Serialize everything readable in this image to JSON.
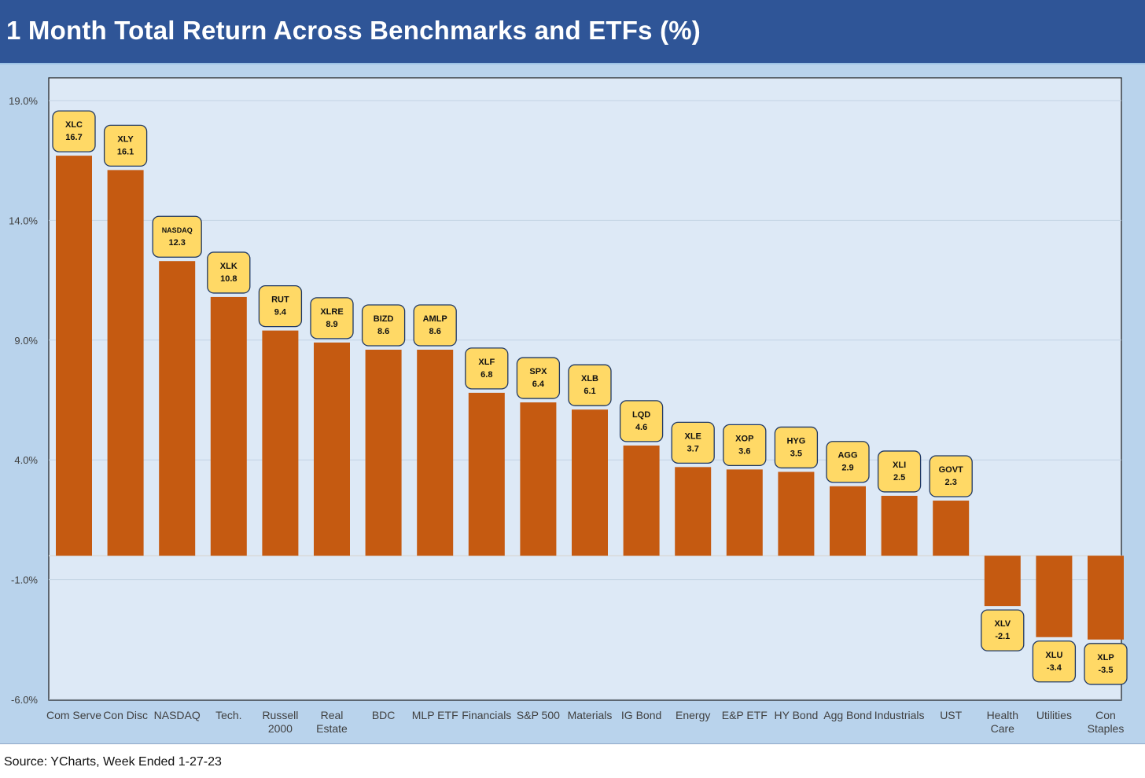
{
  "title": "1 Month Total Return Across Benchmarks and ETFs (%)",
  "source": "Source: YCharts, Week Ended 1-27-23",
  "colors": {
    "header": "#2f5597",
    "bar": "#c55a11",
    "label_fill": "#ffd966",
    "label_stroke": "#1f3864",
    "plot_bg": "#dde9f6",
    "outer_bg": "#b9d3ec"
  },
  "chart_data": {
    "type": "bar",
    "title": "1 Month Total Return Across Benchmarks and ETFs (%)",
    "xlabel": "",
    "ylabel": "",
    "ylim": [
      -6.0,
      19.0
    ],
    "yticks": [
      19.0,
      14.0,
      9.0,
      4.0,
      -1.0,
      -6.0
    ],
    "ytick_labels": [
      "19.0%",
      "14.0%",
      "9.0%",
      "4.0%",
      "-1.0%",
      "-6.0%"
    ],
    "grid": true,
    "categories": [
      [
        "Com Serve"
      ],
      [
        "Con Disc"
      ],
      [
        "NASDAQ"
      ],
      [
        "Tech."
      ],
      [
        "Russell",
        "2000"
      ],
      [
        "Real",
        "Estate"
      ],
      [
        "BDC"
      ],
      [
        "MLP ETF"
      ],
      [
        "Financials"
      ],
      [
        "S&P 500"
      ],
      [
        "Materials"
      ],
      [
        "IG Bond"
      ],
      [
        "Energy"
      ],
      [
        "E&P ETF"
      ],
      [
        "HY Bond"
      ],
      [
        "Agg Bond"
      ],
      [
        "Industrials"
      ],
      [
        "UST"
      ],
      [
        "Health",
        "Care"
      ],
      [
        "Utilities"
      ],
      [
        "Con",
        "Staples"
      ]
    ],
    "tickers": [
      "XLC",
      "XLY",
      "NASDAQ",
      "XLK",
      "RUT",
      "XLRE",
      "BIZD",
      "AMLP",
      "XLF",
      "SPX",
      "XLB",
      "LQD",
      "XLE",
      "XOP",
      "HYG",
      "AGG",
      "XLI",
      "GOVT",
      "XLV",
      "XLU",
      "XLP"
    ],
    "values": [
      16.7,
      16.1,
      12.3,
      10.8,
      9.4,
      8.9,
      8.6,
      8.6,
      6.8,
      6.4,
      6.1,
      4.6,
      3.7,
      3.6,
      3.5,
      2.9,
      2.5,
      2.3,
      -2.1,
      -3.4,
      -3.5
    ]
  }
}
